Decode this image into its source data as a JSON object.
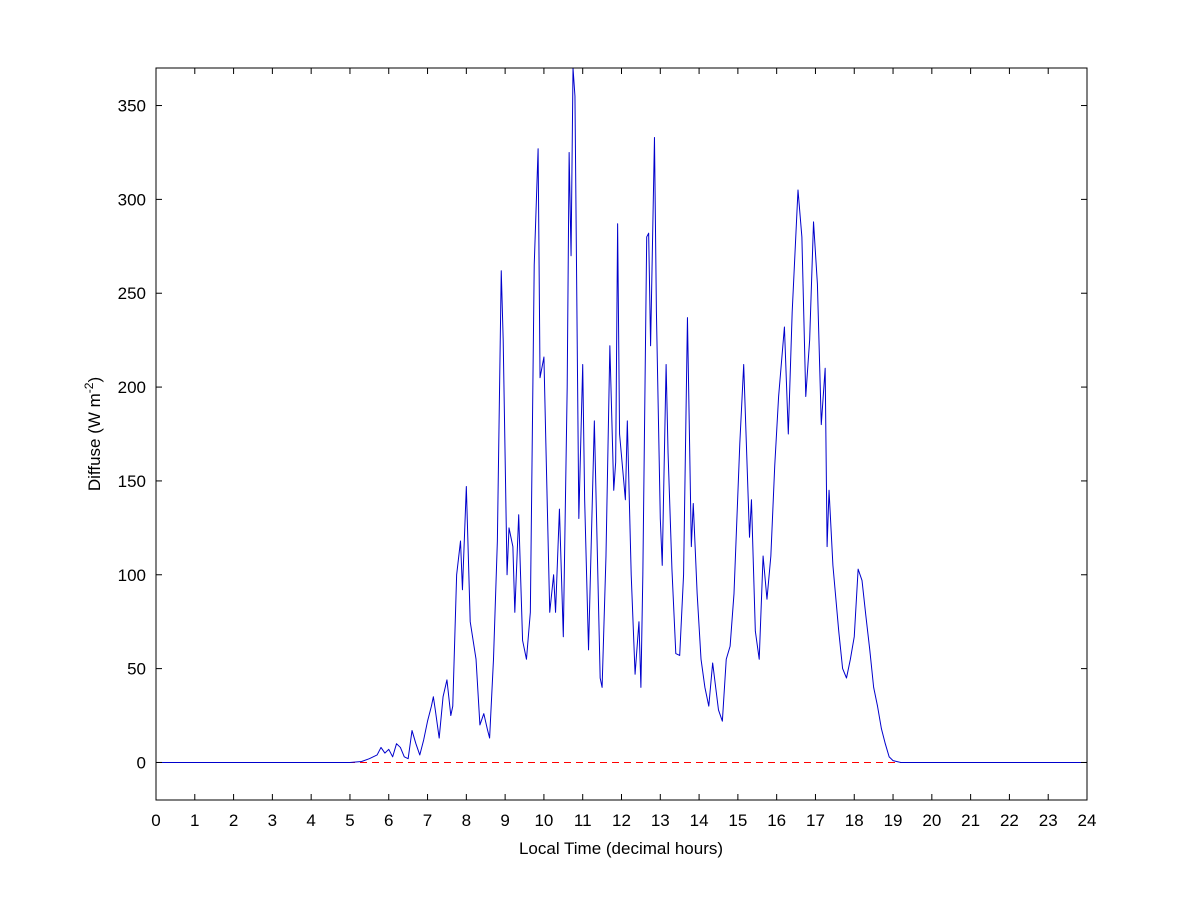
{
  "chart_data": {
    "type": "line",
    "xlabel": "Local Time (decimal hours)",
    "ylabel": {
      "prefix": "Diffuse (W m",
      "superscript": "-2",
      "suffix": ")"
    },
    "xlim": [
      0,
      24
    ],
    "ylim": [
      -20,
      370
    ],
    "xticks": [
      "0",
      "1",
      "2",
      "3",
      "4",
      "5",
      "6",
      "7",
      "8",
      "9",
      "10",
      "11",
      "12",
      "13",
      "14",
      "15",
      "16",
      "17",
      "18",
      "19",
      "20",
      "21",
      "22",
      "23",
      "24"
    ],
    "yticks": [
      "0",
      "50",
      "100",
      "150",
      "200",
      "250",
      "300",
      "350"
    ],
    "grid": false,
    "series": [
      {
        "color": "#0000cc",
        "style": "solid",
        "points": [
          [
            0,
            0
          ],
          [
            5.0,
            0
          ],
          [
            5.3,
            0.5
          ],
          [
            5.5,
            2
          ],
          [
            5.7,
            4
          ],
          [
            5.8,
            8
          ],
          [
            5.9,
            5
          ],
          [
            6.0,
            7
          ],
          [
            6.1,
            3
          ],
          [
            6.2,
            10
          ],
          [
            6.3,
            8
          ],
          [
            6.4,
            3
          ],
          [
            6.5,
            2
          ],
          [
            6.6,
            17
          ],
          [
            6.7,
            10
          ],
          [
            6.8,
            4
          ],
          [
            6.9,
            12
          ],
          [
            7.0,
            22
          ],
          [
            7.1,
            30
          ],
          [
            7.15,
            35
          ],
          [
            7.2,
            28
          ],
          [
            7.3,
            13
          ],
          [
            7.4,
            35
          ],
          [
            7.5,
            44
          ],
          [
            7.6,
            25
          ],
          [
            7.65,
            30
          ],
          [
            7.75,
            100
          ],
          [
            7.85,
            118
          ],
          [
            7.9,
            92
          ],
          [
            8.0,
            147
          ],
          [
            8.1,
            75
          ],
          [
            8.25,
            55
          ],
          [
            8.35,
            20
          ],
          [
            8.45,
            26
          ],
          [
            8.55,
            17
          ],
          [
            8.6,
            13
          ],
          [
            8.7,
            55
          ],
          [
            8.8,
            118
          ],
          [
            8.9,
            262
          ],
          [
            8.95,
            225
          ],
          [
            9.05,
            100
          ],
          [
            9.1,
            125
          ],
          [
            9.2,
            115
          ],
          [
            9.25,
            80
          ],
          [
            9.35,
            132
          ],
          [
            9.45,
            65
          ],
          [
            9.55,
            55
          ],
          [
            9.65,
            80
          ],
          [
            9.75,
            265
          ],
          [
            9.85,
            327
          ],
          [
            9.9,
            205
          ],
          [
            10.0,
            216
          ],
          [
            10.05,
            170
          ],
          [
            10.15,
            80
          ],
          [
            10.25,
            100
          ],
          [
            10.3,
            80
          ],
          [
            10.4,
            135
          ],
          [
            10.5,
            67
          ],
          [
            10.6,
            200
          ],
          [
            10.65,
            325
          ],
          [
            10.7,
            270
          ],
          [
            10.75,
            370
          ],
          [
            10.8,
            355
          ],
          [
            10.9,
            130
          ],
          [
            11.0,
            212
          ],
          [
            11.05,
            140
          ],
          [
            11.15,
            60
          ],
          [
            11.3,
            182
          ],
          [
            11.45,
            45
          ],
          [
            11.5,
            40
          ],
          [
            11.6,
            110
          ],
          [
            11.7,
            222
          ],
          [
            11.8,
            145
          ],
          [
            11.85,
            160
          ],
          [
            11.9,
            287
          ],
          [
            11.95,
            175
          ],
          [
            12.1,
            140
          ],
          [
            12.15,
            182
          ],
          [
            12.25,
            100
          ],
          [
            12.35,
            47
          ],
          [
            12.45,
            75
          ],
          [
            12.5,
            40
          ],
          [
            12.55,
            100
          ],
          [
            12.65,
            280
          ],
          [
            12.7,
            282
          ],
          [
            12.75,
            222
          ],
          [
            12.85,
            333
          ],
          [
            12.9,
            240
          ],
          [
            13.0,
            130
          ],
          [
            13.05,
            105
          ],
          [
            13.15,
            212
          ],
          [
            13.2,
            165
          ],
          [
            13.3,
            103
          ],
          [
            13.4,
            58
          ],
          [
            13.5,
            57
          ],
          [
            13.6,
            100
          ],
          [
            13.7,
            237
          ],
          [
            13.8,
            115
          ],
          [
            13.85,
            138
          ],
          [
            13.95,
            90
          ],
          [
            14.05,
            55
          ],
          [
            14.15,
            40
          ],
          [
            14.25,
            30
          ],
          [
            14.35,
            53
          ],
          [
            14.5,
            28
          ],
          [
            14.6,
            22
          ],
          [
            14.7,
            55
          ],
          [
            14.8,
            62
          ],
          [
            14.9,
            90
          ],
          [
            15.05,
            170
          ],
          [
            15.15,
            212
          ],
          [
            15.3,
            120
          ],
          [
            15.35,
            140
          ],
          [
            15.45,
            70
          ],
          [
            15.55,
            55
          ],
          [
            15.65,
            110
          ],
          [
            15.75,
            87
          ],
          [
            15.85,
            110
          ],
          [
            15.95,
            158
          ],
          [
            16.05,
            195
          ],
          [
            16.2,
            232
          ],
          [
            16.3,
            175
          ],
          [
            16.4,
            240
          ],
          [
            16.55,
            305
          ],
          [
            16.65,
            280
          ],
          [
            16.75,
            195
          ],
          [
            16.85,
            225
          ],
          [
            16.95,
            288
          ],
          [
            17.05,
            255
          ],
          [
            17.15,
            180
          ],
          [
            17.25,
            210
          ],
          [
            17.3,
            115
          ],
          [
            17.35,
            145
          ],
          [
            17.45,
            105
          ],
          [
            17.6,
            70
          ],
          [
            17.7,
            50
          ],
          [
            17.8,
            45
          ],
          [
            17.9,
            55
          ],
          [
            18.0,
            67
          ],
          [
            18.1,
            103
          ],
          [
            18.2,
            97
          ],
          [
            18.3,
            78
          ],
          [
            18.4,
            60
          ],
          [
            18.5,
            40
          ],
          [
            18.6,
            30
          ],
          [
            18.7,
            18
          ],
          [
            18.8,
            10
          ],
          [
            18.9,
            3
          ],
          [
            19.0,
            1
          ],
          [
            19.2,
            0
          ],
          [
            24,
            0
          ]
        ]
      },
      {
        "color": "#ff0000",
        "style": "dashed",
        "points": [
          [
            0,
            0
          ],
          [
            24,
            0
          ]
        ]
      }
    ]
  }
}
